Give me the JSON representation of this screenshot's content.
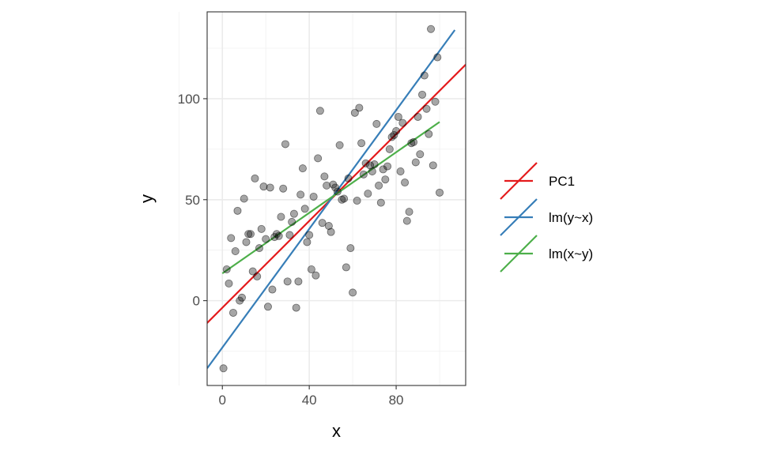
{
  "chart_data": {
    "type": "scatter",
    "xlabel": "x",
    "ylabel": "y",
    "xlim": [
      -7,
      112
    ],
    "ylim": [
      -42,
      143
    ],
    "x_ticks": [
      0,
      40,
      80
    ],
    "y_ticks": [
      0,
      50,
      100
    ],
    "x_tick_labels": [
      "0",
      "40",
      "80"
    ],
    "y_tick_labels": [
      "0",
      "50",
      "100"
    ],
    "x_minor": [
      -20,
      20,
      60,
      100
    ],
    "y_minor": [
      -25,
      25,
      75,
      125
    ],
    "grid": true,
    "legend_position": "right",
    "point_color": "#000000",
    "point_opacity": 0.35,
    "points": [
      [
        0.5,
        -33.5
      ],
      [
        2,
        15.5
      ],
      [
        3,
        8.5
      ],
      [
        4,
        31
      ],
      [
        5,
        -6
      ],
      [
        6,
        24.5
      ],
      [
        7,
        44.5
      ],
      [
        8,
        0
      ],
      [
        9,
        1.5
      ],
      [
        10,
        50.5
      ],
      [
        11,
        29
      ],
      [
        12,
        33
      ],
      [
        13,
        33
      ],
      [
        14,
        14.5
      ],
      [
        15,
        60.5
      ],
      [
        16,
        12
      ],
      [
        17,
        26
      ],
      [
        18,
        35.5
      ],
      [
        19,
        56.5
      ],
      [
        20,
        30.5
      ],
      [
        21,
        -3
      ],
      [
        22,
        56
      ],
      [
        23,
        5.5
      ],
      [
        24,
        31.5
      ],
      [
        25,
        33
      ],
      [
        26,
        32
      ],
      [
        27,
        41.5
      ],
      [
        28,
        55.5
      ],
      [
        29,
        77.5
      ],
      [
        30,
        9.5
      ],
      [
        31,
        32.5
      ],
      [
        32,
        39
      ],
      [
        33,
        43
      ],
      [
        34,
        -3.5
      ],
      [
        35,
        9.5
      ],
      [
        36,
        52.5
      ],
      [
        37,
        65.5
      ],
      [
        38,
        45.5
      ],
      [
        39,
        29
      ],
      [
        40,
        32.5
      ],
      [
        41,
        15.5
      ],
      [
        42,
        51.5
      ],
      [
        43,
        12.5
      ],
      [
        44,
        70.5
      ],
      [
        45,
        94
      ],
      [
        46,
        38.5
      ],
      [
        47,
        61.5
      ],
      [
        48,
        57
      ],
      [
        49,
        37
      ],
      [
        50,
        34
      ],
      [
        51,
        57.5
      ],
      [
        52,
        56
      ],
      [
        53,
        54
      ],
      [
        54,
        77
      ],
      [
        55,
        50
      ],
      [
        56,
        50.5
      ],
      [
        57,
        16.5
      ],
      [
        58,
        60.5
      ],
      [
        59,
        26
      ],
      [
        60,
        4
      ],
      [
        61,
        93
      ],
      [
        62,
        49.5
      ],
      [
        63,
        95.5
      ],
      [
        64,
        78
      ],
      [
        65,
        62.5
      ],
      [
        66,
        68
      ],
      [
        67,
        53
      ],
      [
        68,
        67
      ],
      [
        69,
        64
      ],
      [
        70,
        67.5
      ],
      [
        71,
        87.5
      ],
      [
        72,
        57
      ],
      [
        73,
        48.5
      ],
      [
        74,
        65
      ],
      [
        75,
        60
      ],
      [
        76,
        66.5
      ],
      [
        77,
        75
      ],
      [
        78,
        81
      ],
      [
        79,
        82
      ],
      [
        80,
        84
      ],
      [
        81,
        91
      ],
      [
        82,
        64
      ],
      [
        83,
        88
      ],
      [
        84,
        58.5
      ],
      [
        85,
        39.5
      ],
      [
        86,
        44
      ],
      [
        87,
        78
      ],
      [
        88,
        78.5
      ],
      [
        89,
        68.5
      ],
      [
        90,
        91
      ],
      [
        91,
        72.5
      ],
      [
        92,
        102
      ],
      [
        93,
        111.5
      ],
      [
        94,
        95
      ],
      [
        95,
        82.5
      ],
      [
        96,
        134.5
      ],
      [
        97,
        67
      ],
      [
        98,
        98.5
      ],
      [
        99,
        120.5
      ],
      [
        100,
        53.5
      ]
    ],
    "series": [
      {
        "name": "PC1",
        "color": "#E41A1C",
        "x": [
          -13.5,
          114
        ],
        "y": [
          -18,
          119
        ]
      },
      {
        "name": "lm(y~x)",
        "color": "#377EB8",
        "x": [
          -7,
          107
        ],
        "y": [
          -33.5,
          134
        ]
      },
      {
        "name": "lm(x~y)",
        "color": "#4DAF4A",
        "x": [
          0,
          100
        ],
        "y": [
          13.5,
          88.5
        ]
      }
    ]
  }
}
